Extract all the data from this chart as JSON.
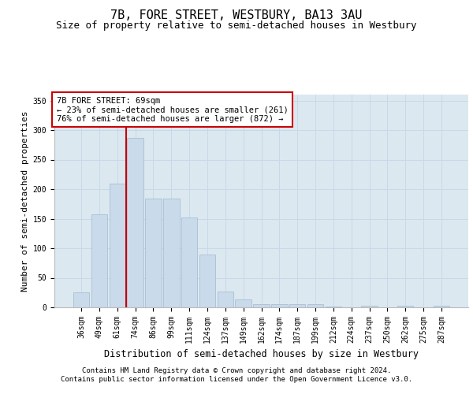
{
  "title": "7B, FORE STREET, WESTBURY, BA13 3AU",
  "subtitle": "Size of property relative to semi-detached houses in Westbury",
  "xlabel": "Distribution of semi-detached houses by size in Westbury",
  "ylabel": "Number of semi-detached properties",
  "categories": [
    "36sqm",
    "49sqm",
    "61sqm",
    "74sqm",
    "86sqm",
    "99sqm",
    "111sqm",
    "124sqm",
    "137sqm",
    "149sqm",
    "162sqm",
    "174sqm",
    "187sqm",
    "199sqm",
    "212sqm",
    "224sqm",
    "237sqm",
    "250sqm",
    "262sqm",
    "275sqm",
    "287sqm"
  ],
  "values": [
    25,
    157,
    210,
    287,
    184,
    184,
    152,
    90,
    27,
    13,
    6,
    6,
    5,
    5,
    2,
    0,
    3,
    0,
    3,
    0,
    3
  ],
  "bar_color": "#c9daea",
  "bar_edge_color": "#a0b8d0",
  "property_line_x": 2.5,
  "annotation_text": "7B FORE STREET: 69sqm\n← 23% of semi-detached houses are smaller (261)\n76% of semi-detached houses are larger (872) →",
  "annotation_box_color": "#ffffff",
  "annotation_box_edge_color": "#cc0000",
  "line_color": "#cc0000",
  "grid_color": "#c8d8e8",
  "plot_bg_color": "#dce8f0",
  "footer_line1": "Contains HM Land Registry data © Crown copyright and database right 2024.",
  "footer_line2": "Contains public sector information licensed under the Open Government Licence v3.0.",
  "ylim": [
    0,
    360
  ],
  "yticks": [
    0,
    50,
    100,
    150,
    200,
    250,
    300,
    350
  ],
  "title_fontsize": 11,
  "subtitle_fontsize": 9,
  "ylabel_fontsize": 8,
  "xlabel_fontsize": 8.5,
  "tick_fontsize": 7,
  "annot_fontsize": 7.5,
  "footer_fontsize": 6.5
}
